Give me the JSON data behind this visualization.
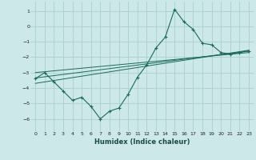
{
  "xlabel": "Humidex (Indice chaleur)",
  "xlim": [
    -0.5,
    23.5
  ],
  "ylim": [
    -6.8,
    1.6
  ],
  "yticks": [
    1,
    0,
    -1,
    -2,
    -3,
    -4,
    -5,
    -6
  ],
  "xticks": [
    0,
    1,
    2,
    3,
    4,
    5,
    6,
    7,
    8,
    9,
    10,
    11,
    12,
    13,
    14,
    15,
    16,
    17,
    18,
    19,
    20,
    21,
    22,
    23
  ],
  "bg_color": "#cce8e8",
  "grid_color": "#aacfcf",
  "line_color": "#1a6b5a",
  "curve_x": [
    0,
    1,
    2,
    3,
    4,
    5,
    6,
    7,
    8,
    9,
    10,
    11,
    12,
    13,
    14,
    15,
    16,
    17,
    18,
    19,
    20,
    21,
    22,
    23
  ],
  "curve_y": [
    -3.4,
    -3.0,
    -3.6,
    -4.2,
    -4.8,
    -4.6,
    -5.2,
    -6.0,
    -5.5,
    -5.3,
    -4.4,
    -3.3,
    -2.5,
    -1.4,
    -0.7,
    1.1,
    0.3,
    -0.2,
    -1.1,
    -1.2,
    -1.7,
    -1.8,
    -1.7,
    -1.6
  ],
  "line1_x": [
    0,
    23
  ],
  "line1_y": [
    -3.35,
    -1.6
  ],
  "line2_x": [
    0,
    23
  ],
  "line2_y": [
    -3.0,
    -1.7
  ],
  "line3_x": [
    0,
    23
  ],
  "line3_y": [
    -3.7,
    -1.55
  ]
}
